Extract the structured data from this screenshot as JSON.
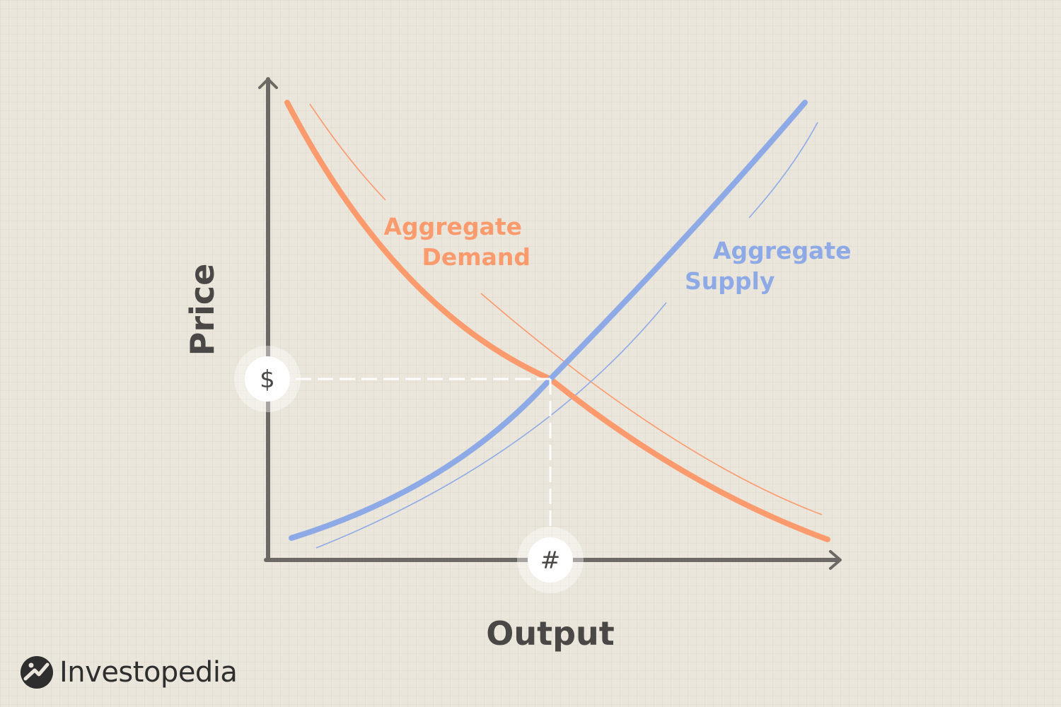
{
  "diagram": {
    "y_axis_label": "Price",
    "x_axis_label": "Output",
    "demand_label_line1": "Aggregate",
    "demand_label_line2": "Demand",
    "supply_label_line1": "Aggregate",
    "supply_label_line2": "Supply",
    "price_marker": "$",
    "output_marker": "#"
  },
  "brand": {
    "name": "Investopedia"
  },
  "colors": {
    "background": "#ebe6dc",
    "axis": "#6b6866",
    "demand": "#fb9a6d",
    "supply": "#8eaae6",
    "guide": "#ffffff",
    "text": "#4a4846"
  }
}
